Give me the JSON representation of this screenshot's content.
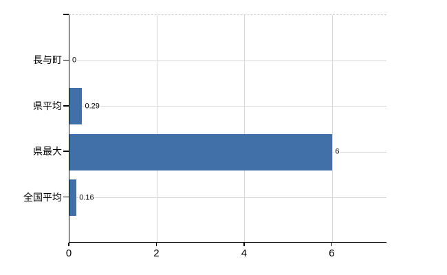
{
  "chart_data": {
    "type": "bar",
    "orientation": "horizontal",
    "title": "",
    "categories": [
      "長与町",
      "県平均",
      "県最大",
      "全国平均"
    ],
    "values": [
      0,
      0.29,
      6,
      0.16
    ],
    "value_labels": [
      "0",
      "0.29",
      "6",
      "0.16"
    ],
    "x_ticks": [
      "0",
      "2",
      "4",
      "6"
    ],
    "x_tick_values": [
      0,
      2,
      4,
      6
    ],
    "xlim": [
      0,
      7.25
    ],
    "grid": true,
    "legend": false,
    "colors": {
      "bar": "#4170a8",
      "grid_vertical": "#d6d6d6",
      "grid_horizontal": "#d6dbd6",
      "axis": "#000000",
      "text": "#000000",
      "background": "#ffffff"
    }
  }
}
